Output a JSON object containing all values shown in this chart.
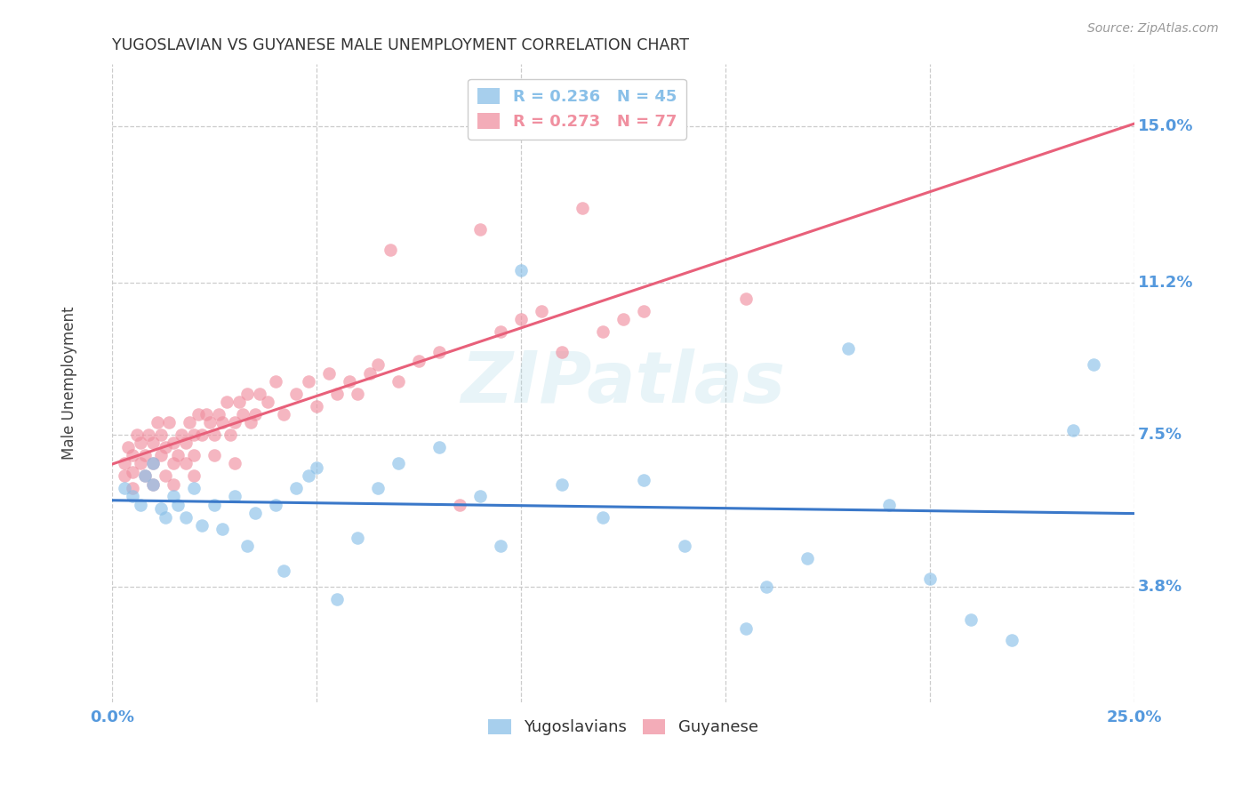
{
  "title": "YUGOSLAVIAN VS GUYANESE MALE UNEMPLOYMENT CORRELATION CHART",
  "source": "Source: ZipAtlas.com",
  "ylabel": "Male Unemployment",
  "yticks": [
    0.038,
    0.075,
    0.112,
    0.15
  ],
  "ytick_labels": [
    "3.8%",
    "7.5%",
    "11.2%",
    "15.0%"
  ],
  "xlim": [
    0.0,
    0.25
  ],
  "ylim": [
    0.01,
    0.165
  ],
  "watermark": "ZIPatlas",
  "blue_color": "#8ac0e8",
  "pink_color": "#f090a0",
  "blue_line_color": "#3a78c9",
  "pink_line_color": "#e8607a",
  "axis_label_color": "#5599dd",
  "title_color": "#333333",
  "legend_r_blue": "R = 0.236",
  "legend_n_blue": "N = 45",
  "legend_r_pink": "R = 0.273",
  "legend_n_pink": "N = 77",
  "blue_x": [
    0.003,
    0.005,
    0.007,
    0.008,
    0.01,
    0.01,
    0.012,
    0.013,
    0.015,
    0.016,
    0.018,
    0.02,
    0.022,
    0.025,
    0.027,
    0.03,
    0.033,
    0.035,
    0.04,
    0.042,
    0.045,
    0.048,
    0.05,
    0.055,
    0.06,
    0.065,
    0.07,
    0.08,
    0.09,
    0.095,
    0.1,
    0.11,
    0.12,
    0.13,
    0.14,
    0.155,
    0.16,
    0.17,
    0.18,
    0.19,
    0.2,
    0.21,
    0.22,
    0.235,
    0.24
  ],
  "blue_y": [
    0.062,
    0.06,
    0.058,
    0.065,
    0.063,
    0.068,
    0.057,
    0.055,
    0.06,
    0.058,
    0.055,
    0.062,
    0.053,
    0.058,
    0.052,
    0.06,
    0.048,
    0.056,
    0.058,
    0.042,
    0.062,
    0.065,
    0.067,
    0.035,
    0.05,
    0.062,
    0.068,
    0.072,
    0.06,
    0.048,
    0.115,
    0.063,
    0.055,
    0.064,
    0.048,
    0.028,
    0.038,
    0.045,
    0.096,
    0.058,
    0.04,
    0.03,
    0.025,
    0.076,
    0.092
  ],
  "pink_x": [
    0.003,
    0.003,
    0.004,
    0.005,
    0.005,
    0.005,
    0.006,
    0.007,
    0.007,
    0.008,
    0.008,
    0.009,
    0.01,
    0.01,
    0.01,
    0.011,
    0.012,
    0.012,
    0.013,
    0.013,
    0.014,
    0.015,
    0.015,
    0.015,
    0.016,
    0.017,
    0.018,
    0.018,
    0.019,
    0.02,
    0.02,
    0.02,
    0.021,
    0.022,
    0.023,
    0.024,
    0.025,
    0.025,
    0.026,
    0.027,
    0.028,
    0.029,
    0.03,
    0.03,
    0.031,
    0.032,
    0.033,
    0.034,
    0.035,
    0.036,
    0.038,
    0.04,
    0.042,
    0.045,
    0.048,
    0.05,
    0.053,
    0.055,
    0.058,
    0.06,
    0.063,
    0.065,
    0.068,
    0.07,
    0.075,
    0.08,
    0.085,
    0.09,
    0.095,
    0.1,
    0.105,
    0.11,
    0.115,
    0.12,
    0.125,
    0.13,
    0.155
  ],
  "pink_y": [
    0.065,
    0.068,
    0.072,
    0.062,
    0.066,
    0.07,
    0.075,
    0.068,
    0.073,
    0.065,
    0.07,
    0.075,
    0.063,
    0.068,
    0.073,
    0.078,
    0.07,
    0.075,
    0.065,
    0.072,
    0.078,
    0.063,
    0.068,
    0.073,
    0.07,
    0.075,
    0.068,
    0.073,
    0.078,
    0.065,
    0.07,
    0.075,
    0.08,
    0.075,
    0.08,
    0.078,
    0.07,
    0.075,
    0.08,
    0.078,
    0.083,
    0.075,
    0.068,
    0.078,
    0.083,
    0.08,
    0.085,
    0.078,
    0.08,
    0.085,
    0.083,
    0.088,
    0.08,
    0.085,
    0.088,
    0.082,
    0.09,
    0.085,
    0.088,
    0.085,
    0.09,
    0.092,
    0.12,
    0.088,
    0.093,
    0.095,
    0.058,
    0.125,
    0.1,
    0.103,
    0.105,
    0.095,
    0.13,
    0.1,
    0.103,
    0.105,
    0.108
  ]
}
